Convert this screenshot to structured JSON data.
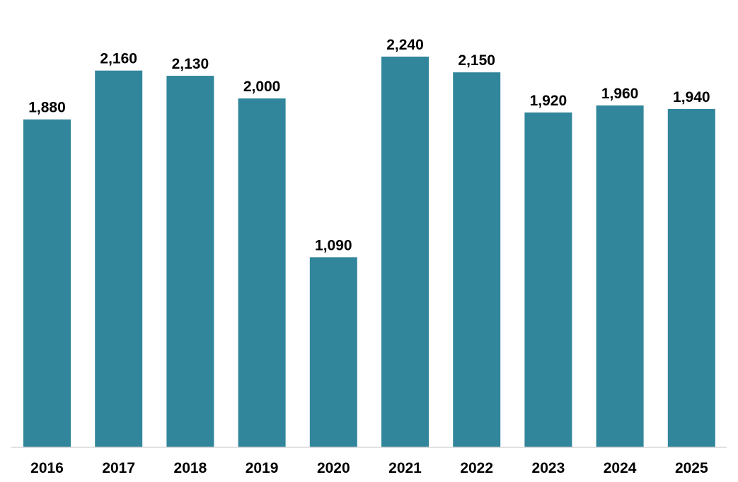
{
  "chart_data": {
    "type": "bar",
    "title": "",
    "xlabel": "",
    "ylabel": "",
    "categories": [
      "2016",
      "2017",
      "2018",
      "2019",
      "2020",
      "2021",
      "2022",
      "2023",
      "2024",
      "2025"
    ],
    "values": [
      1880,
      2160,
      2130,
      2000,
      1090,
      2240,
      2150,
      1920,
      1960,
      1940
    ],
    "value_labels": [
      "1,880",
      "2,160",
      "2,130",
      "2,000",
      "1,090",
      "2,240",
      "2,150",
      "1,920",
      "1,960",
      "1,940"
    ],
    "ylim": [
      0,
      2240
    ],
    "grid": false,
    "legend": "none",
    "colors": {
      "bar": "#31869b",
      "baseline": "#d9d9d9",
      "text": "#000000"
    }
  }
}
